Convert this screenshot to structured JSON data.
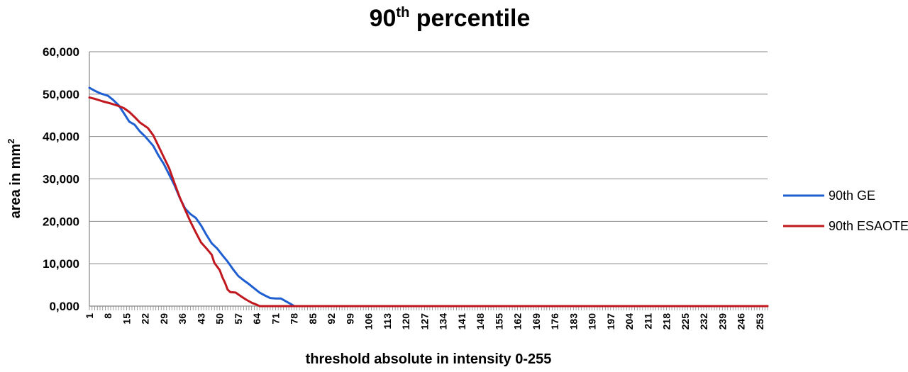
{
  "chart_data": {
    "type": "line",
    "title": "90",
    "title_superscript": "th",
    "title_suffix": " percentile",
    "xlabel": "threshold absolute in intensity 0-255",
    "ylabel": "area in mm",
    "ylabel_superscript": "2",
    "ylim": [
      0,
      60000
    ],
    "xlim": [
      1,
      256
    ],
    "yticks": [
      "0,000",
      "10,000",
      "20,000",
      "30,000",
      "40,000",
      "50,000",
      "60,000"
    ],
    "ytick_values": [
      0,
      10000,
      20000,
      30000,
      40000,
      50000,
      60000
    ],
    "xtick_labels": [
      "1",
      "8",
      "15",
      "22",
      "29",
      "36",
      "43",
      "50",
      "57",
      "64",
      "71",
      "78",
      "85",
      "92",
      "99",
      "106",
      "113",
      "120",
      "127",
      "134",
      "141",
      "148",
      "155",
      "162",
      "169",
      "176",
      "183",
      "190",
      "197",
      "204",
      "211",
      "218",
      "225",
      "232",
      "239",
      "246",
      "253"
    ],
    "grid": true,
    "legend_position": "right",
    "series": [
      {
        "name": "90th GE",
        "color": "#1f5fd1",
        "x": [
          1,
          3,
          5,
          8,
          10,
          12,
          14,
          16,
          18,
          20,
          22,
          25,
          27,
          29,
          31,
          33,
          35,
          37,
          39,
          41,
          43,
          45,
          47,
          49,
          51,
          53,
          55,
          57,
          59,
          61,
          63,
          65,
          67,
          69,
          71,
          73,
          75,
          77,
          78,
          256
        ],
        "y": [
          51500,
          50800,
          50200,
          49600,
          48600,
          47400,
          45500,
          43500,
          42800,
          41200,
          40000,
          37800,
          35500,
          33500,
          31000,
          28500,
          25500,
          23000,
          21700,
          20800,
          19000,
          16800,
          14800,
          13600,
          12000,
          10500,
          8700,
          7100,
          6100,
          5200,
          4200,
          3200,
          2500,
          1900,
          1800,
          1800,
          1100,
          400,
          0,
          0
        ]
      },
      {
        "name": "90th ESAOTE",
        "color": "#c0181e",
        "x": [
          1,
          3,
          6,
          9,
          12,
          14,
          16,
          18,
          20,
          23,
          25,
          27,
          29,
          31,
          33,
          35,
          37,
          39,
          41,
          43,
          45,
          47,
          48,
          50,
          51,
          52,
          53,
          54,
          56,
          58,
          60,
          62,
          64,
          65,
          256
        ],
        "y": [
          49200,
          48900,
          48300,
          47800,
          47200,
          46700,
          45800,
          44600,
          43300,
          42000,
          40300,
          37700,
          35100,
          32500,
          29000,
          25600,
          22700,
          19900,
          17400,
          15000,
          13600,
          12100,
          10200,
          8500,
          6800,
          5500,
          3900,
          3300,
          3200,
          2300,
          1500,
          800,
          300,
          0,
          0
        ]
      }
    ]
  }
}
